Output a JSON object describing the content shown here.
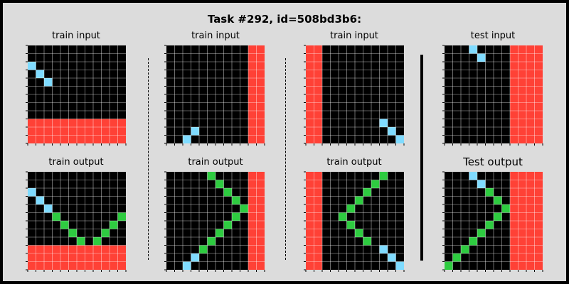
{
  "title": "Task #292, id=508bd3b6:",
  "colors": {
    "background": "#dcdcdc",
    "black": "#000000",
    "red": "#ff4136",
    "blue": "#7fdbff",
    "green": "#2ecc40",
    "gridline": "#ffffff"
  },
  "panels": [
    {
      "label": "train input",
      "rows": [
        "000000000000",
        "000000000000",
        "100000000000",
        "010000000000",
        "001000000000",
        "000000000000",
        "000000000000",
        "000000000000",
        "000000000000",
        "222222222222",
        "222222222222",
        "222222222222"
      ]
    },
    {
      "label": "train input",
      "rows": [
        "000000000022",
        "000000000022",
        "000000000022",
        "000000000022",
        "000000000022",
        "000000000022",
        "000000000022",
        "000000000022",
        "000000000022",
        "000000000022",
        "000100000022",
        "001000000022"
      ]
    },
    {
      "label": "train input",
      "rows": [
        "220000000000",
        "220000000000",
        "220000000000",
        "220000000000",
        "220000000000",
        "220000000000",
        "220000000000",
        "220000000000",
        "220000000000",
        "220000000100",
        "220000000010",
        "220000000001"
      ]
    },
    {
      "label": "test input",
      "rows": [
        "000100002222",
        "000010002222",
        "000000002222",
        "000000002222",
        "000000002222",
        "000000002222",
        "000000002222",
        "000000002222",
        "000000002222",
        "000000002222",
        "000000002222",
        "000000002222"
      ]
    },
    {
      "label": "train output",
      "rows": [
        "000000000000",
        "000000000000",
        "100000000000",
        "010000000000",
        "001000000000",
        "000300000003",
        "000030000030",
        "000003000300",
        "000000303000",
        "222222222222",
        "222222222222",
        "222222222222"
      ]
    },
    {
      "label": "train output",
      "rows": [
        "000003000022",
        "000000300022",
        "000000030022",
        "000000003022",
        "000000000322",
        "000000003022",
        "000000030022",
        "000000300022",
        "000003000022",
        "000030000022",
        "000100000022",
        "001000000022"
      ]
    },
    {
      "label": "train output",
      "rows": [
        "220000000300",
        "220000003000",
        "220000030000",
        "220000300000",
        "220003000000",
        "220030000000",
        "220003000000",
        "220000300000",
        "220000030000",
        "220000000100",
        "220000000010",
        "220000000001"
      ]
    },
    {
      "label": "Test output",
      "rows": [
        "000100002222",
        "000010002222",
        "000003002222",
        "000000302222",
        "000000032222",
        "000000302222",
        "000003002222",
        "000030002222",
        "000300002222",
        "003000002222",
        "030000002222",
        "300000002222"
      ]
    }
  ]
}
